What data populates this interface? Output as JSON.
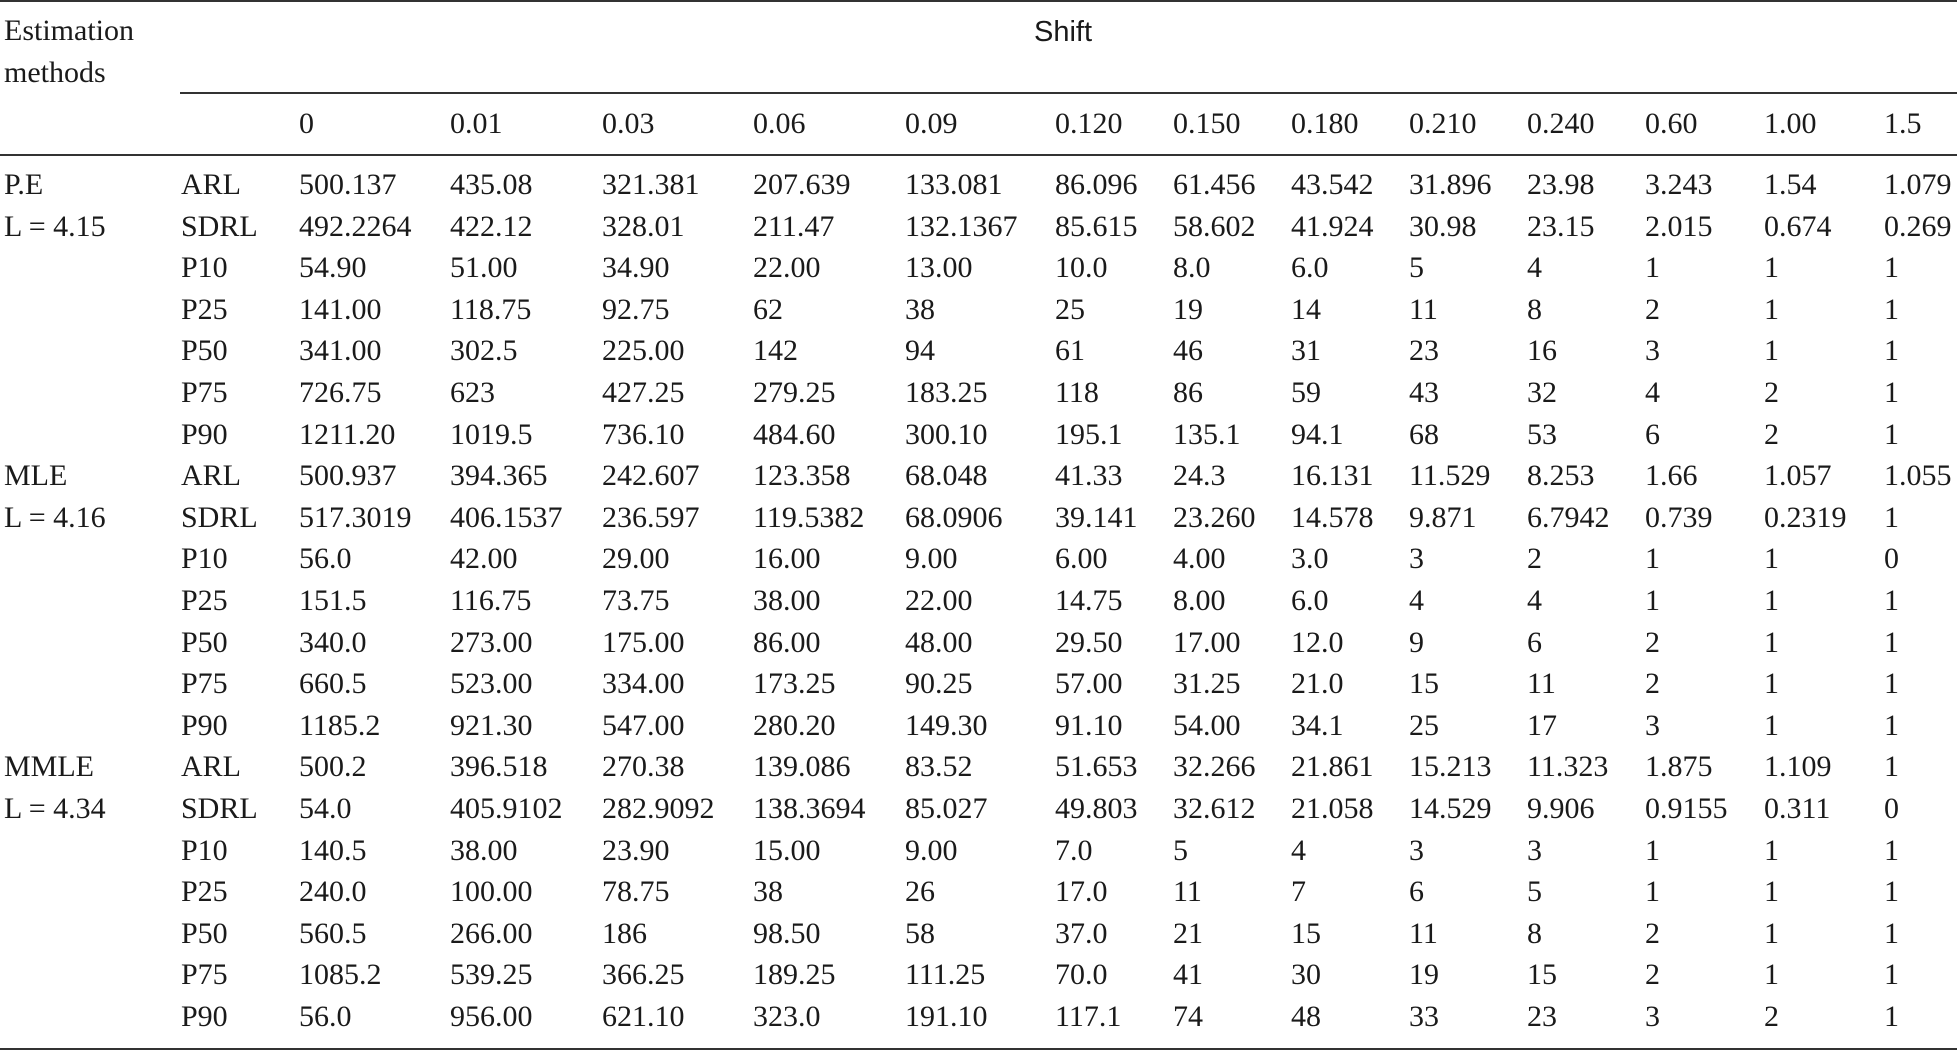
{
  "table": {
    "corner_header": [
      "Estimation",
      "methods"
    ],
    "group_header": "Shift",
    "shift_values": [
      "0",
      "0.01",
      "0.03",
      "0.06",
      "0.09",
      "0.120",
      "0.150",
      "0.180",
      "0.210",
      "0.240",
      "0.60",
      "1.00",
      "1.5"
    ],
    "groups": [
      {
        "method": "P.E",
        "limit": "L = 4.15",
        "rows": [
          {
            "stat": "ARL",
            "values": [
              "500.137",
              "435.08",
              "321.381",
              "207.639",
              "133.081",
              "86.096",
              "61.456",
              "43.542",
              "31.896",
              "23.98",
              "3.243",
              "1.54",
              "1.079"
            ]
          },
          {
            "stat": "SDRL",
            "values": [
              "492.2264",
              "422.12",
              "328.01",
              "211.47",
              "132.1367",
              "85.615",
              "58.602",
              "41.924",
              "30.98",
              "23.15",
              "2.015",
              "0.674",
              "0.269"
            ]
          },
          {
            "stat": "P10",
            "values": [
              "54.90",
              "51.00",
              "34.90",
              "22.00",
              "13.00",
              "10.0",
              "8.0",
              "6.0",
              "5",
              "4",
              "1",
              "1",
              "1"
            ]
          },
          {
            "stat": "P25",
            "values": [
              "141.00",
              "118.75",
              "92.75",
              "62",
              "38",
              "25",
              "19",
              "14",
              "11",
              "8",
              "2",
              "1",
              "1"
            ]
          },
          {
            "stat": "P50",
            "values": [
              "341.00",
              "302.5",
              "225.00",
              "142",
              "94",
              "61",
              "46",
              "31",
              "23",
              "16",
              "3",
              "1",
              "1"
            ]
          },
          {
            "stat": "P75",
            "values": [
              "726.75",
              "623",
              "427.25",
              "279.25",
              "183.25",
              "118",
              "86",
              "59",
              "43",
              "32",
              "4",
              "2",
              "1"
            ]
          },
          {
            "stat": "P90",
            "values": [
              "1211.20",
              "1019.5",
              "736.10",
              "484.60",
              "300.10",
              "195.1",
              "135.1",
              "94.1",
              "68",
              "53",
              "6",
              "2",
              "1"
            ]
          }
        ]
      },
      {
        "method": "MLE",
        "limit": "L = 4.16",
        "rows": [
          {
            "stat": "ARL",
            "values": [
              "500.937",
              "394.365",
              "242.607",
              "123.358",
              "68.048",
              "41.33",
              "24.3",
              "16.131",
              "11.529",
              "8.253",
              "1.66",
              "1.057",
              "1.055"
            ]
          },
          {
            "stat": "SDRL",
            "values": [
              "517.3019",
              "406.1537",
              "236.597",
              "119.5382",
              "68.0906",
              "39.141",
              "23.260",
              "14.578",
              "9.871",
              "6.7942",
              "0.739",
              "0.2319",
              "1"
            ]
          },
          {
            "stat": "P10",
            "values": [
              "56.0",
              "42.00",
              "29.00",
              "16.00",
              "9.00",
              "6.00",
              "4.00",
              "3.0",
              "3",
              "2",
              "1",
              "1",
              "0"
            ]
          },
          {
            "stat": "P25",
            "values": [
              "151.5",
              "116.75",
              "73.75",
              "38.00",
              "22.00",
              "14.75",
              "8.00",
              "6.0",
              "4",
              "4",
              "1",
              "1",
              "1"
            ]
          },
          {
            "stat": "P50",
            "values": [
              "340.0",
              "273.00",
              "175.00",
              "86.00",
              "48.00",
              "29.50",
              "17.00",
              "12.0",
              "9",
              "6",
              "2",
              "1",
              "1"
            ]
          },
          {
            "stat": "P75",
            "values": [
              "660.5",
              "523.00",
              "334.00",
              "173.25",
              "90.25",
              "57.00",
              "31.25",
              "21.0",
              "15",
              "11",
              "2",
              "1",
              "1"
            ]
          },
          {
            "stat": "P90",
            "values": [
              "1185.2",
              "921.30",
              "547.00",
              "280.20",
              "149.30",
              "91.10",
              "54.00",
              "34.1",
              "25",
              "17",
              "3",
              "1",
              "1"
            ]
          }
        ]
      },
      {
        "method": "MMLE",
        "limit": "L = 4.34",
        "rows": [
          {
            "stat": "ARL",
            "values": [
              "500.2",
              "396.518",
              "270.38",
              "139.086",
              "83.52",
              "51.653",
              "32.266",
              "21.861",
              "15.213",
              "11.323",
              "1.875",
              "1.109",
              "1"
            ]
          },
          {
            "stat": "SDRL",
            "values": [
              "54.0",
              "405.9102",
              "282.9092",
              "138.3694",
              "85.027",
              "49.803",
              "32.612",
              "21.058",
              "14.529",
              "9.906",
              "0.9155",
              "0.311",
              "0"
            ]
          },
          {
            "stat": "P10",
            "values": [
              "140.5",
              "38.00",
              "23.90",
              "15.00",
              "9.00",
              "7.0",
              "5",
              "4",
              "3",
              "3",
              "1",
              "1",
              "1"
            ]
          },
          {
            "stat": "P25",
            "values": [
              "240.0",
              "100.00",
              "78.75",
              "38",
              "26",
              "17.0",
              "11",
              "7",
              "6",
              "5",
              "1",
              "1",
              "1"
            ]
          },
          {
            "stat": "P50",
            "values": [
              "560.5",
              "266.00",
              "186",
              "98.50",
              "58",
              "37.0",
              "21",
              "15",
              "11",
              "8",
              "2",
              "1",
              "1"
            ]
          },
          {
            "stat": "P75",
            "values": [
              "1085.2",
              "539.25",
              "366.25",
              "189.25",
              "111.25",
              "70.0",
              "41",
              "30",
              "19",
              "15",
              "2",
              "1",
              "1"
            ]
          },
          {
            "stat": "P90",
            "values": [
              "56.0",
              "956.00",
              "621.10",
              "323.0",
              "191.10",
              "117.1",
              "74",
              "48",
              "33",
              "23",
              "3",
              "2",
              "1"
            ]
          }
        ]
      }
    ]
  }
}
